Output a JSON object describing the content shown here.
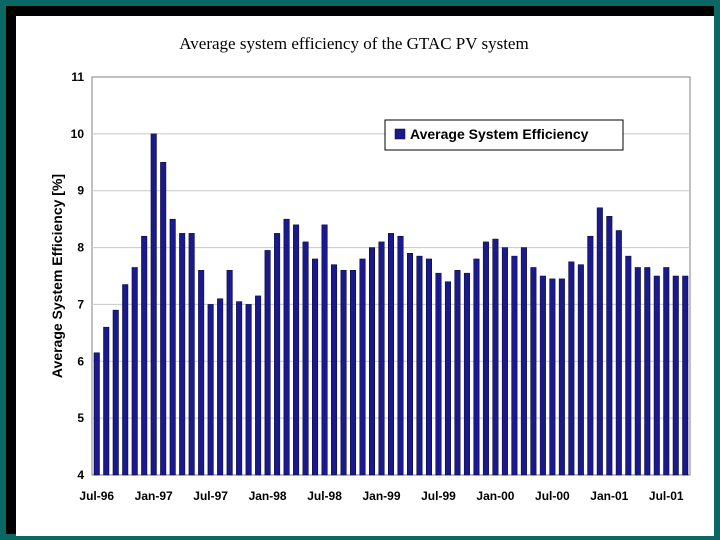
{
  "colors": {
    "background": "#0b6763",
    "bar": "#1a1a8c",
    "bar_edge": "#000033",
    "grid": "#c8c8c8"
  },
  "chart_data": {
    "type": "bar",
    "title": "Average system efficiency of the GTAC PV system",
    "xlabel": "",
    "ylabel": "Average System Efficiency [%]",
    "ylim": [
      4,
      11
    ],
    "yticks": [
      4,
      5,
      6,
      7,
      8,
      9,
      10,
      11
    ],
    "grid": true,
    "legend_position": "top-right",
    "x_tick_labels": [
      "Jul-96",
      "Jan-97",
      "Jul-97",
      "Jan-98",
      "Jul-98",
      "Jan-99",
      "Jul-99",
      "Jan-00",
      "Jul-00",
      "Jan-01",
      "Jul-01"
    ],
    "series": [
      {
        "name": "Average System Efficiency",
        "values": [
          6.15,
          6.6,
          6.9,
          7.35,
          7.65,
          8.2,
          10.0,
          9.5,
          8.5,
          8.25,
          8.25,
          7.6,
          7.0,
          7.1,
          7.6,
          7.05,
          7.0,
          7.15,
          7.95,
          8.25,
          8.5,
          8.4,
          8.1,
          7.8,
          8.4,
          7.7,
          7.6,
          7.6,
          7.8,
          8.0,
          8.1,
          8.25,
          8.2,
          7.9,
          7.85,
          7.8,
          7.55,
          7.4,
          7.6,
          7.55,
          7.8,
          8.1,
          8.15,
          8.0,
          7.85,
          8.0,
          7.65,
          7.5,
          7.45,
          7.45,
          7.75,
          7.7,
          8.2,
          8.7,
          8.55,
          8.3,
          7.85,
          7.65,
          7.65,
          7.5,
          7.65,
          7.5,
          7.5
        ]
      }
    ]
  }
}
